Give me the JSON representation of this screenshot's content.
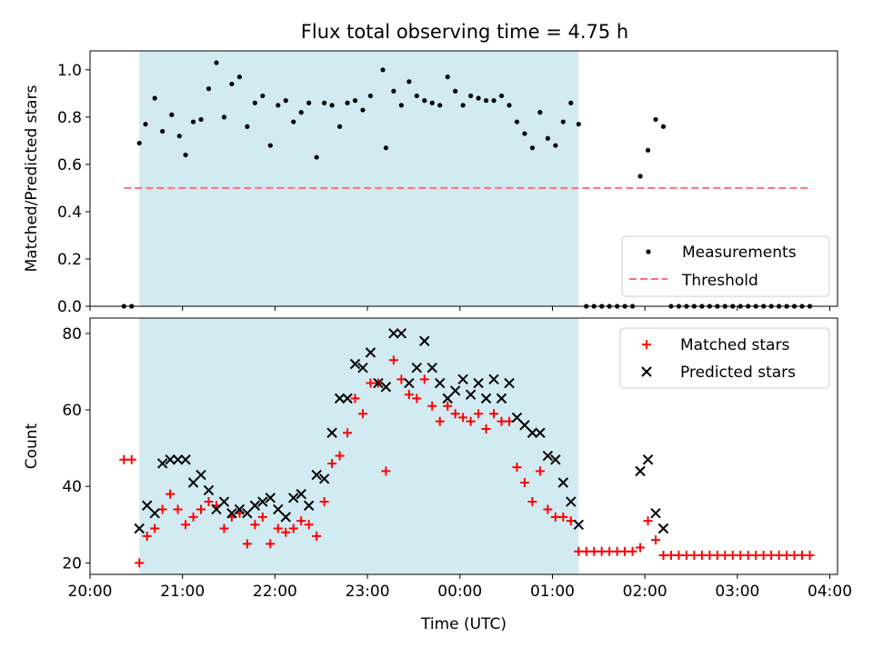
{
  "title": "Flux total observing time = 4.75 h",
  "colors": {
    "shade": "#add8e6",
    "measurement": "#000000",
    "threshold": "#ff7070",
    "matched": "#ff0000",
    "predicted": "#000000"
  },
  "chart_data": [
    {
      "type": "scatter",
      "ylabel": "Matched/Predicted stars",
      "ylim": [
        0,
        1.08
      ],
      "yticks": [
        "0.0",
        "0.2",
        "0.4",
        "0.6",
        "0.8",
        "1.0"
      ],
      "xlim": [
        "20:00",
        "04:05"
      ],
      "shaded_interval": [
        "20:32",
        "01:17"
      ],
      "legend_position": "lower right",
      "threshold": {
        "name": "Threshold",
        "value": 0.5,
        "x": [
          "20:22",
          "03:47"
        ]
      },
      "series": [
        {
          "name": "Measurements",
          "points": [
            [
              "20:22",
              0.0
            ],
            [
              "20:27",
              0.0
            ],
            [
              "20:32",
              0.69
            ],
            [
              "20:36",
              0.77
            ],
            [
              "20:42",
              0.88
            ],
            [
              "20:47",
              0.74
            ],
            [
              "20:53",
              0.81
            ],
            [
              "20:58",
              0.72
            ],
            [
              "21:02",
              0.64
            ],
            [
              "21:07",
              0.78
            ],
            [
              "21:12",
              0.79
            ],
            [
              "21:17",
              0.92
            ],
            [
              "21:22",
              1.03
            ],
            [
              "21:27",
              0.8
            ],
            [
              "21:32",
              0.94
            ],
            [
              "21:37",
              0.97
            ],
            [
              "21:42",
              0.76
            ],
            [
              "21:47",
              0.86
            ],
            [
              "21:52",
              0.89
            ],
            [
              "21:57",
              0.68
            ],
            [
              "22:02",
              0.85
            ],
            [
              "22:07",
              0.87
            ],
            [
              "22:12",
              0.78
            ],
            [
              "22:17",
              0.82
            ],
            [
              "22:22",
              0.86
            ],
            [
              "22:27",
              0.63
            ],
            [
              "22:32",
              0.86
            ],
            [
              "22:37",
              0.85
            ],
            [
              "22:42",
              0.76
            ],
            [
              "22:47",
              0.86
            ],
            [
              "22:52",
              0.87
            ],
            [
              "22:57",
              0.83
            ],
            [
              "23:02",
              0.89
            ],
            [
              "23:10",
              1.0
            ],
            [
              "23:12",
              0.67
            ],
            [
              "23:17",
              0.91
            ],
            [
              "23:22",
              0.85
            ],
            [
              "23:27",
              0.95
            ],
            [
              "23:32",
              0.89
            ],
            [
              "23:37",
              0.87
            ],
            [
              "23:42",
              0.86
            ],
            [
              "23:47",
              0.85
            ],
            [
              "23:52",
              0.97
            ],
            [
              "23:57",
              0.91
            ],
            [
              "00:02",
              0.85
            ],
            [
              "00:07",
              0.89
            ],
            [
              "00:12",
              0.88
            ],
            [
              "00:17",
              0.87
            ],
            [
              "00:22",
              0.87
            ],
            [
              "00:27",
              0.89
            ],
            [
              "00:32",
              0.85
            ],
            [
              "00:37",
              0.78
            ],
            [
              "00:42",
              0.73
            ],
            [
              "00:47",
              0.67
            ],
            [
              "00:52",
              0.82
            ],
            [
              "00:57",
              0.71
            ],
            [
              "01:02",
              0.68
            ],
            [
              "01:07",
              0.78
            ],
            [
              "01:12",
              0.86
            ],
            [
              "01:17",
              0.77
            ],
            [
              "01:22",
              0.0
            ],
            [
              "01:27",
              0.0
            ],
            [
              "01:32",
              0.0
            ],
            [
              "01:37",
              0.0
            ],
            [
              "01:42",
              0.0
            ],
            [
              "01:47",
              0.0
            ],
            [
              "01:52",
              0.0
            ],
            [
              "01:57",
              0.55
            ],
            [
              "02:02",
              0.66
            ],
            [
              "02:07",
              0.79
            ],
            [
              "02:12",
              0.76
            ],
            [
              "02:17",
              0.0
            ],
            [
              "02:22",
              0.0
            ],
            [
              "02:27",
              0.0
            ],
            [
              "02:32",
              0.0
            ],
            [
              "02:37",
              0.0
            ],
            [
              "02:42",
              0.0
            ],
            [
              "02:47",
              0.0
            ],
            [
              "02:52",
              0.0
            ],
            [
              "02:57",
              0.0
            ],
            [
              "03:02",
              0.0
            ],
            [
              "03:07",
              0.0
            ],
            [
              "03:12",
              0.0
            ],
            [
              "03:17",
              0.0
            ],
            [
              "03:22",
              0.0
            ],
            [
              "03:27",
              0.0
            ],
            [
              "03:32",
              0.0
            ],
            [
              "03:37",
              0.0
            ],
            [
              "03:42",
              0.0
            ],
            [
              "03:47",
              0.0
            ]
          ]
        }
      ]
    },
    {
      "type": "scatter",
      "xlabel": "Time (UTC)",
      "ylabel": "Count",
      "ylim": [
        17,
        84
      ],
      "yticks": [
        "20",
        "40",
        "60",
        "80"
      ],
      "xlim": [
        "20:00",
        "04:05"
      ],
      "xticks": [
        "20:00",
        "21:00",
        "22:00",
        "23:00",
        "00:00",
        "01:00",
        "02:00",
        "03:00",
        "04:00"
      ],
      "shaded_interval": [
        "20:32",
        "01:17"
      ],
      "legend_position": "upper right",
      "series": [
        {
          "name": "Matched stars",
          "marker": "plus",
          "points": [
            [
              "20:22",
              47
            ],
            [
              "20:27",
              47
            ],
            [
              "20:32",
              20
            ],
            [
              "20:37",
              27
            ],
            [
              "20:42",
              29
            ],
            [
              "20:47",
              34
            ],
            [
              "20:52",
              38
            ],
            [
              "20:57",
              34
            ],
            [
              "21:02",
              30
            ],
            [
              "21:07",
              32
            ],
            [
              "21:12",
              34
            ],
            [
              "21:17",
              36
            ],
            [
              "21:22",
              35
            ],
            [
              "21:27",
              29
            ],
            [
              "21:32",
              32
            ],
            [
              "21:37",
              33
            ],
            [
              "21:42",
              25
            ],
            [
              "21:47",
              30
            ],
            [
              "21:52",
              32
            ],
            [
              "21:57",
              25
            ],
            [
              "22:02",
              29
            ],
            [
              "22:07",
              28
            ],
            [
              "22:12",
              29
            ],
            [
              "22:17",
              31
            ],
            [
              "22:22",
              30
            ],
            [
              "22:27",
              27
            ],
            [
              "22:32",
              36
            ],
            [
              "22:37",
              46
            ],
            [
              "22:42",
              48
            ],
            [
              "22:47",
              54
            ],
            [
              "22:52",
              63
            ],
            [
              "22:57",
              59
            ],
            [
              "23:02",
              67
            ],
            [
              "23:07",
              67
            ],
            [
              "23:12",
              44
            ],
            [
              "23:17",
              73
            ],
            [
              "23:22",
              68
            ],
            [
              "23:27",
              64
            ],
            [
              "23:32",
              63
            ],
            [
              "23:37",
              68
            ],
            [
              "23:42",
              61
            ],
            [
              "23:47",
              57
            ],
            [
              "23:52",
              61
            ],
            [
              "23:57",
              59
            ],
            [
              "00:02",
              58
            ],
            [
              "00:07",
              57
            ],
            [
              "00:12",
              59
            ],
            [
              "00:17",
              55
            ],
            [
              "00:22",
              59
            ],
            [
              "00:27",
              57
            ],
            [
              "00:32",
              57
            ],
            [
              "00:37",
              45
            ],
            [
              "00:42",
              41
            ],
            [
              "00:47",
              36
            ],
            [
              "00:52",
              44
            ],
            [
              "00:57",
              34
            ],
            [
              "01:02",
              32
            ],
            [
              "01:07",
              32
            ],
            [
              "01:12",
              31
            ],
            [
              "01:17",
              23
            ],
            [
              "01:22",
              23
            ],
            [
              "01:27",
              23
            ],
            [
              "01:32",
              23
            ],
            [
              "01:37",
              23
            ],
            [
              "01:42",
              23
            ],
            [
              "01:47",
              23
            ],
            [
              "01:52",
              23
            ],
            [
              "01:57",
              24
            ],
            [
              "02:02",
              31
            ],
            [
              "02:07",
              26
            ],
            [
              "02:12",
              22
            ],
            [
              "02:17",
              22
            ],
            [
              "02:22",
              22
            ],
            [
              "02:27",
              22
            ],
            [
              "02:32",
              22
            ],
            [
              "02:37",
              22
            ],
            [
              "02:42",
              22
            ],
            [
              "02:47",
              22
            ],
            [
              "02:52",
              22
            ],
            [
              "02:57",
              22
            ],
            [
              "03:02",
              22
            ],
            [
              "03:07",
              22
            ],
            [
              "03:12",
              22
            ],
            [
              "03:17",
              22
            ],
            [
              "03:22",
              22
            ],
            [
              "03:27",
              22
            ],
            [
              "03:32",
              22
            ],
            [
              "03:37",
              22
            ],
            [
              "03:42",
              22
            ],
            [
              "03:47",
              22
            ]
          ]
        },
        {
          "name": "Predicted stars",
          "marker": "x",
          "points": [
            [
              "20:32",
              29
            ],
            [
              "20:37",
              35
            ],
            [
              "20:42",
              33
            ],
            [
              "20:47",
              46
            ],
            [
              "20:52",
              47
            ],
            [
              "20:57",
              47
            ],
            [
              "21:02",
              47
            ],
            [
              "21:07",
              41
            ],
            [
              "21:12",
              43
            ],
            [
              "21:17",
              39
            ],
            [
              "21:22",
              34
            ],
            [
              "21:27",
              36
            ],
            [
              "21:32",
              33
            ],
            [
              "21:37",
              34
            ],
            [
              "21:42",
              33
            ],
            [
              "21:47",
              35
            ],
            [
              "21:52",
              36
            ],
            [
              "21:57",
              37
            ],
            [
              "22:02",
              34
            ],
            [
              "22:07",
              32
            ],
            [
              "22:12",
              37
            ],
            [
              "22:17",
              38
            ],
            [
              "22:22",
              35
            ],
            [
              "22:27",
              43
            ],
            [
              "22:32",
              42
            ],
            [
              "22:37",
              54
            ],
            [
              "22:42",
              63
            ],
            [
              "22:47",
              63
            ],
            [
              "22:52",
              72
            ],
            [
              "22:57",
              71
            ],
            [
              "23:02",
              75
            ],
            [
              "23:07",
              67
            ],
            [
              "23:12",
              66
            ],
            [
              "23:17",
              80
            ],
            [
              "23:22",
              80
            ],
            [
              "23:27",
              67
            ],
            [
              "23:32",
              71
            ],
            [
              "23:37",
              78
            ],
            [
              "23:42",
              71
            ],
            [
              "23:47",
              67
            ],
            [
              "23:52",
              63
            ],
            [
              "23:57",
              65
            ],
            [
              "00:02",
              68
            ],
            [
              "00:07",
              64
            ],
            [
              "00:12",
              67
            ],
            [
              "00:17",
              63
            ],
            [
              "00:22",
              68
            ],
            [
              "00:27",
              63
            ],
            [
              "00:32",
              67
            ],
            [
              "00:37",
              58
            ],
            [
              "00:42",
              56
            ],
            [
              "00:47",
              54
            ],
            [
              "00:52",
              54
            ],
            [
              "00:57",
              48
            ],
            [
              "01:02",
              47
            ],
            [
              "01:07",
              41
            ],
            [
              "01:12",
              36
            ],
            [
              "01:17",
              30
            ],
            [
              "01:57",
              44
            ],
            [
              "02:02",
              47
            ],
            [
              "02:07",
              33
            ],
            [
              "02:12",
              29
            ]
          ]
        }
      ]
    }
  ]
}
